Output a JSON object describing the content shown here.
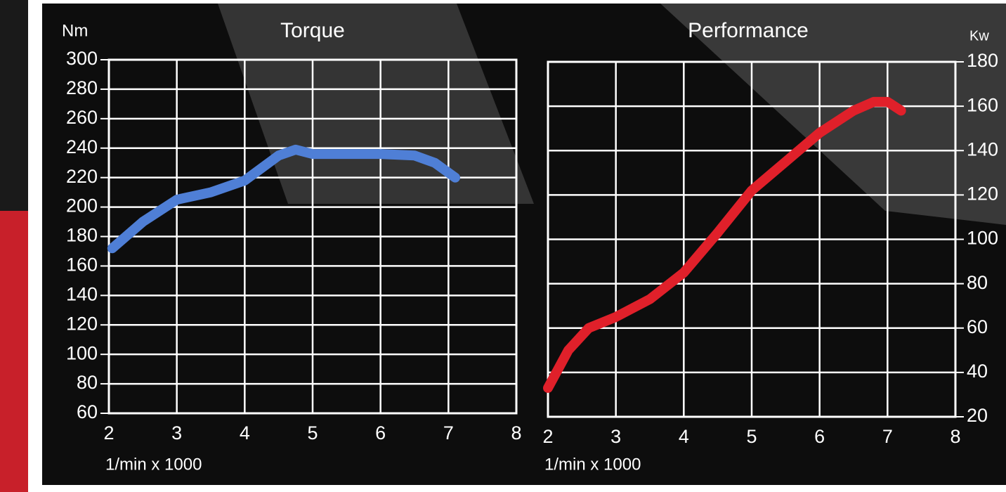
{
  "chart_data": [
    {
      "type": "line",
      "title": "Torque",
      "ylabel": "Nm",
      "xlabel": "1/min x 1000",
      "yaxis_position": "left",
      "x": [
        2.05,
        2.5,
        3,
        3.5,
        4,
        4.5,
        4.75,
        5,
        5.5,
        6,
        6.5,
        6.8,
        7.1
      ],
      "values": [
        172,
        190,
        205,
        210,
        218,
        235,
        239,
        236,
        236,
        236,
        235,
        230,
        220
      ],
      "color": "#4f7fd6",
      "xlim": [
        2,
        8
      ],
      "xticks": [
        2,
        3,
        4,
        5,
        6,
        7,
        8
      ],
      "ylim": [
        60,
        300
      ],
      "yticks": [
        60,
        80,
        100,
        120,
        140,
        160,
        180,
        200,
        220,
        240,
        260,
        280,
        300
      ],
      "grid": true
    },
    {
      "type": "line",
      "title": "Performance",
      "ylabel": "Kw",
      "xlabel": "1/min x 1000",
      "yaxis_position": "right",
      "x": [
        2,
        2.3,
        2.6,
        3,
        3.5,
        4,
        4.5,
        5,
        5.5,
        6,
        6.5,
        6.8,
        7,
        7.2
      ],
      "values": [
        33,
        50,
        60,
        65,
        73,
        85,
        103,
        122,
        135,
        148,
        158,
        162,
        162,
        158
      ],
      "color": "#e0202a",
      "xlim": [
        2,
        8
      ],
      "xticks": [
        2,
        3,
        4,
        5,
        6,
        7,
        8
      ],
      "ylim": [
        20,
        180
      ],
      "yticks": [
        20,
        40,
        60,
        80,
        100,
        120,
        140,
        160,
        180
      ],
      "grid": true
    }
  ]
}
